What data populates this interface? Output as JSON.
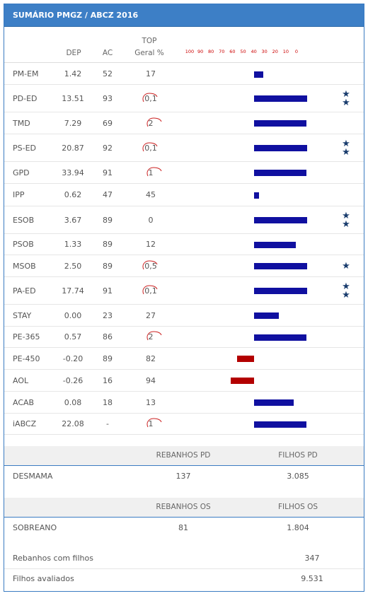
{
  "panel": {
    "title": "SUMÁRIO PMGZ / ABCZ 2016"
  },
  "columns": {
    "dep": "DEP",
    "ac": "AC",
    "top_line1": "TOP",
    "top_line2": "Geral %"
  },
  "scale_labels": [
    "100",
    "90",
    "80",
    "70",
    "60",
    "50",
    "40",
    "30",
    "20",
    "10",
    "0"
  ],
  "rows": [
    {
      "name": "PM-EM",
      "dep": "1.42",
      "ac": "52",
      "top": "17",
      "circled": false,
      "bar_percent": 17,
      "stars": 0
    },
    {
      "name": "PD-ED",
      "dep": "13.51",
      "ac": "93",
      "top": "0,1",
      "circled": true,
      "bar_percent": 100,
      "stars": 2
    },
    {
      "name": "TMD",
      "dep": "7.29",
      "ac": "69",
      "top": "2",
      "circled": true,
      "bar_percent": 98,
      "stars": 0
    },
    {
      "name": "PS-ED",
      "dep": "20.87",
      "ac": "92",
      "top": "0,1",
      "circled": true,
      "bar_percent": 100,
      "stars": 2
    },
    {
      "name": "GPD",
      "dep": "33.94",
      "ac": "91",
      "top": "1",
      "circled": true,
      "bar_percent": 99,
      "stars": 0
    },
    {
      "name": "IPP",
      "dep": "0.62",
      "ac": "47",
      "top": "45",
      "circled": false,
      "bar_percent": 9,
      "stars": 0
    },
    {
      "name": "ESOB",
      "dep": "3.67",
      "ac": "89",
      "top": "0",
      "circled": false,
      "bar_percent": 100,
      "stars": 2
    },
    {
      "name": "PSOB",
      "dep": "1.33",
      "ac": "89",
      "top": "12",
      "circled": false,
      "bar_percent": 78,
      "stars": 0
    },
    {
      "name": "MSOB",
      "dep": "2.50",
      "ac": "89",
      "top": "0,5",
      "circled": true,
      "bar_percent": 100,
      "stars": 1
    },
    {
      "name": "PA-ED",
      "dep": "17.74",
      "ac": "91",
      "top": "0,1",
      "circled": true,
      "bar_percent": 100,
      "stars": 2
    },
    {
      "name": "STAY",
      "dep": "0.00",
      "ac": "23",
      "top": "27",
      "circled": false,
      "bar_percent": 47,
      "stars": 0
    },
    {
      "name": "PE-365",
      "dep": "0.57",
      "ac": "86",
      "top": "2",
      "circled": true,
      "bar_percent": 98,
      "stars": 0
    },
    {
      "name": "PE-450",
      "dep": "-0.20",
      "ac": "89",
      "top": "82",
      "circled": false,
      "bar_percent": -32,
      "stars": 0
    },
    {
      "name": "AOL",
      "dep": "-0.26",
      "ac": "16",
      "top": "94",
      "circled": false,
      "bar_percent": -44,
      "stars": 0
    },
    {
      "name": "ACAB",
      "dep": "0.08",
      "ac": "18",
      "top": "13",
      "circled": false,
      "bar_percent": 75,
      "stars": 0
    },
    {
      "name": "iABCZ",
      "dep": "22.08",
      "ac": "-",
      "top": "1",
      "circled": true,
      "bar_percent": 99,
      "stars": 0
    }
  ],
  "pd": {
    "col1": "REBANHOS PD",
    "col2": "FILHOS PD",
    "label": "DESMAMA",
    "v1": "137",
    "v2": "3.085"
  },
  "os": {
    "col1": "REBANHOS OS",
    "col2": "FILHOS OS",
    "label": "SOBREANO",
    "v1": "81",
    "v2": "1.804"
  },
  "footer": [
    {
      "label": "Rebanhos com filhos",
      "value": "347"
    },
    {
      "label": "Filhos avaliados",
      "value": "9.531"
    }
  ],
  "colors": {
    "header": "#3d7fc6",
    "bar_positive": "#1010a0",
    "bar_negative": "#b30000",
    "star": "#1a3d6e",
    "scale": "#cc0000"
  },
  "icons": {
    "star": "star-icon",
    "circle_mark": "circle-mark-icon"
  }
}
